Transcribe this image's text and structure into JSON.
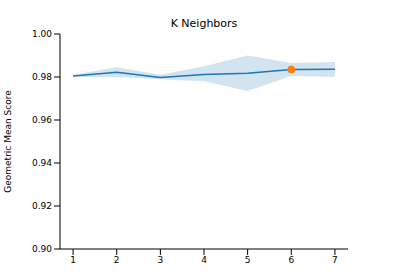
{
  "chart_data": {
    "type": "line",
    "title": "K Neighbors",
    "y_label": "Geometric Mean Score",
    "xlim": [
      0.7,
      7.3
    ],
    "xticks": [
      1,
      2,
      3,
      4,
      5,
      6,
      7
    ],
    "ylim": [
      0.9,
      1.0
    ],
    "yticks": [
      {
        "value": 0.9,
        "label": "0.90"
      },
      {
        "value": 0.92,
        "label": "0.92"
      },
      {
        "value": 0.94,
        "label": "0.94"
      },
      {
        "value": 0.96,
        "label": "0.96"
      },
      {
        "value": 0.98,
        "label": "0.98"
      },
      {
        "value": 1.0,
        "label": "1.00"
      }
    ],
    "grid": false,
    "series": [
      {
        "type": "line",
        "color": "#1f77b4",
        "x": [
          1,
          2,
          3,
          4,
          5,
          6,
          7
        ],
        "values": [
          0.9805,
          0.9822,
          0.9798,
          0.9812,
          0.9817,
          0.9835,
          0.9836
        ],
        "lower": [
          0.98,
          0.98,
          0.979,
          0.978,
          0.9735,
          0.9805,
          0.98
        ],
        "upper": [
          0.981,
          0.9845,
          0.981,
          0.985,
          0.99,
          0.9865,
          0.987
        ]
      },
      {
        "type": "scatter",
        "color": "#ff7f0e",
        "marker": "circle",
        "x": [
          6
        ],
        "values": [
          0.9835
        ]
      }
    ]
  }
}
